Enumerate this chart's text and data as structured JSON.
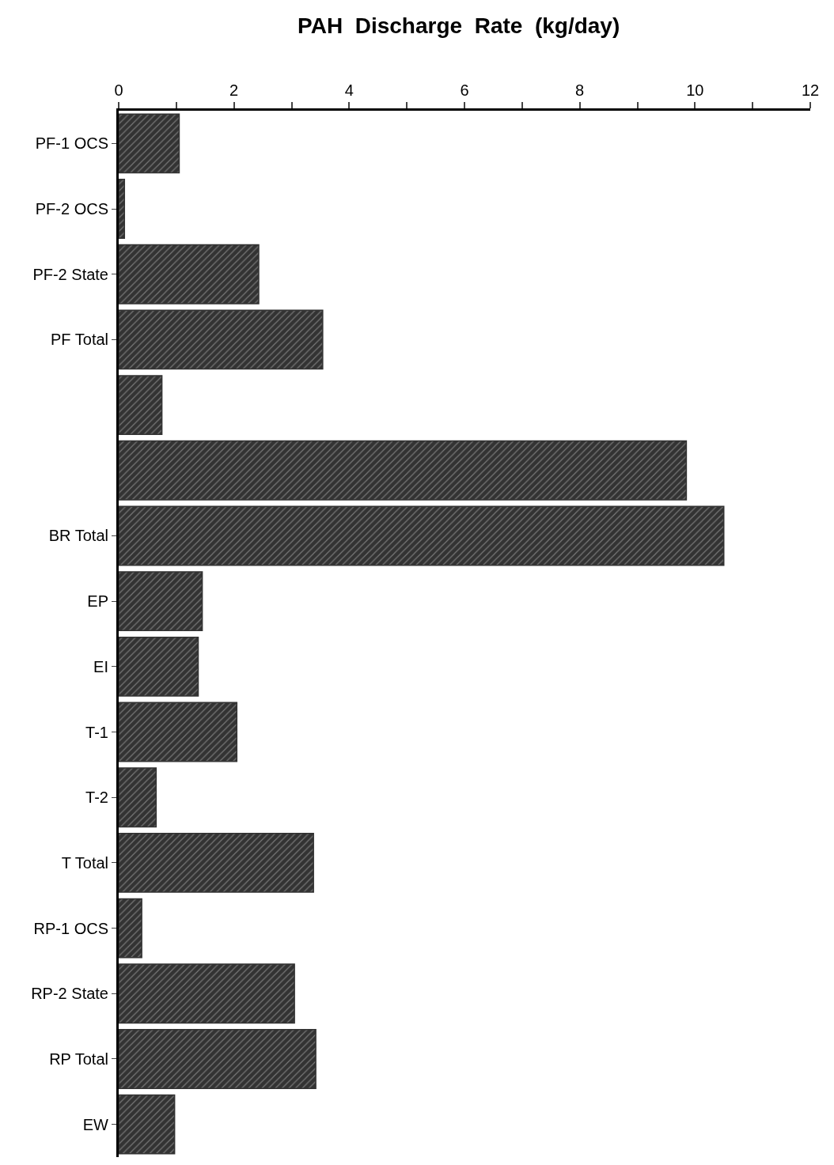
{
  "chart_data": {
    "type": "bar",
    "orientation": "horizontal",
    "title": "PAH  Discharge  Rate  (kg/day)",
    "categories": [
      "PF-1 OCS",
      "PF-2 OCS",
      "PF-2 State",
      "PF Total",
      null,
      null,
      "BR Total",
      "EP",
      "EI",
      "T-1",
      "T-2",
      "T Total",
      "RP-1 OCS",
      "RP-2 State",
      "RP Total",
      "EW"
    ],
    "values": [
      1.05,
      0.1,
      2.43,
      3.54,
      0.75,
      9.85,
      10.5,
      1.45,
      1.38,
      2.05,
      0.65,
      3.38,
      0.4,
      3.05,
      3.42,
      0.97
    ],
    "color": "#333333",
    "xlim": [
      0,
      12
    ],
    "xticks": [
      0,
      {
        "value": 1,
        "label": null
      },
      2,
      {
        "value": 3,
        "label": null
      },
      4,
      {
        "value": 5,
        "label": null
      },
      6,
      {
        "value": 7,
        "label": null
      },
      8,
      {
        "value": 9,
        "label": null
      },
      10,
      {
        "value": 11,
        "label": null
      },
      12
    ]
  }
}
